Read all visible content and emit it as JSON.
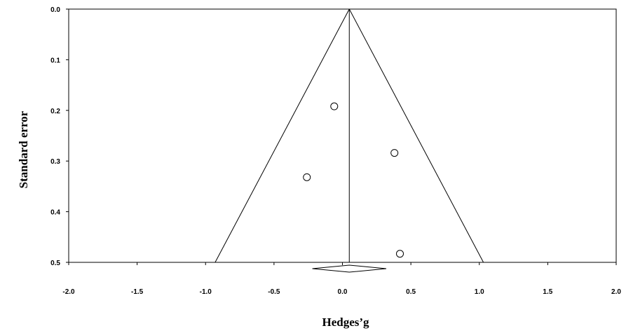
{
  "chart_data": {
    "type": "scatter",
    "subtype": "funnel-plot",
    "title": "",
    "xlabel": "Hedges’g",
    "ylabel": "Standard error",
    "xlim": [
      -2.0,
      2.0
    ],
    "ylim": [
      0.0,
      0.5
    ],
    "y_inverted": true,
    "x_ticks": [
      "-2.0",
      "-1.5",
      "-1.0",
      "-0.5",
      "0.0",
      "0.5",
      "1.0",
      "1.5",
      "2.0"
    ],
    "y_ticks": [
      "0.0",
      "0.1",
      "0.2",
      "0.3",
      "0.4",
      "0.5"
    ],
    "grid": false,
    "points": [
      {
        "x": -0.06,
        "y": 0.192
      },
      {
        "x": 0.38,
        "y": 0.284
      },
      {
        "x": -0.26,
        "y": 0.332
      },
      {
        "x": 0.42,
        "y": 0.483
      }
    ],
    "pooled_effect": 0.05,
    "funnel_se_max": 0.5,
    "funnel_bounds_at_se_max": [
      -0.93,
      1.03
    ],
    "summary_diamond": {
      "center": 0.05,
      "lower": -0.22,
      "upper": 0.32
    },
    "colors": {
      "line": "#000000",
      "marker_fill": "#ffffff",
      "background": "#ffffff"
    }
  }
}
